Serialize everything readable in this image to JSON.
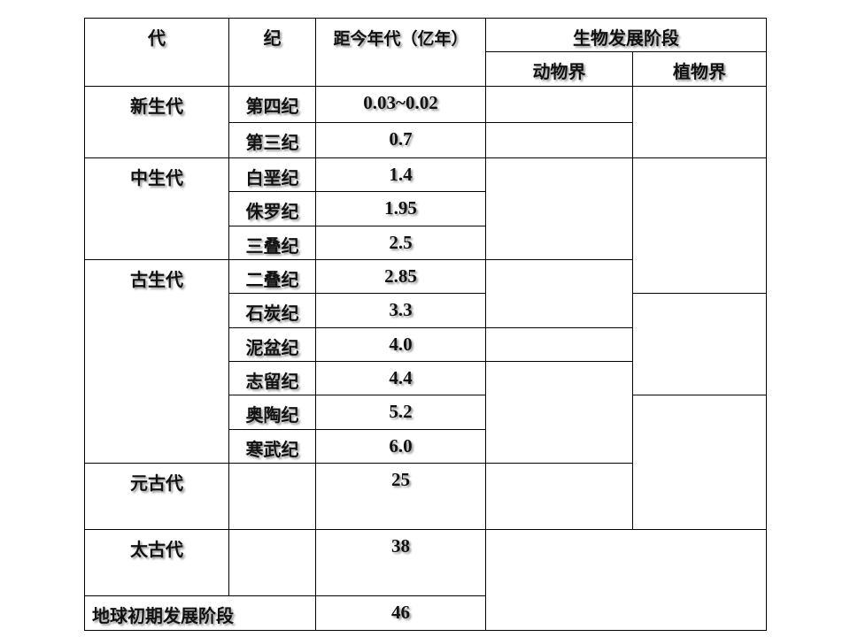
{
  "header": {
    "era": "代",
    "period": "纪",
    "age": "距今年代（亿年）",
    "bio": "生物发展阶段",
    "animal": "动物界",
    "plant": "植物界"
  },
  "eras": [
    "新生代",
    "中生代",
    "古生代",
    "元古代",
    "太古代",
    "地球初期发展阶段"
  ],
  "periods": [
    "第四纪",
    "第三纪",
    "白垩纪",
    "侏罗纪",
    "三叠纪",
    "二叠纪",
    "石炭纪",
    "泥盆纪",
    "志留纪",
    "奥陶纪",
    "寒武纪"
  ],
  "ages": [
    "0.03~0.02",
    "0.7",
    "1.4",
    "1.95",
    "2.5",
    "2.85",
    "3.3",
    "4.0",
    "4.4",
    "5.2",
    "6.0",
    "25",
    "38",
    "46"
  ]
}
